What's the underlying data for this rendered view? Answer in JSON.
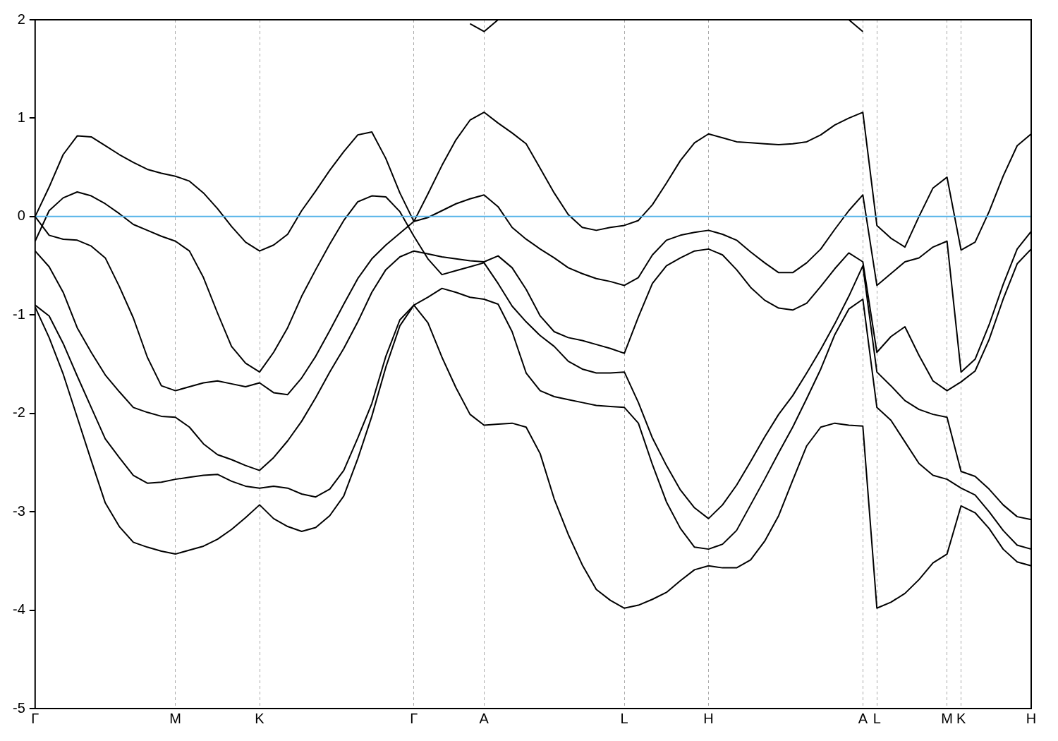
{
  "chart_data": {
    "type": "line",
    "ylim": [
      -5,
      2
    ],
    "categories": [
      "Γ",
      null,
      null,
      null,
      null,
      null,
      null,
      null,
      null,
      null,
      "M",
      null,
      null,
      null,
      null,
      null,
      "K",
      null,
      null,
      null,
      null,
      null,
      null,
      null,
      null,
      null,
      null,
      "Γ",
      null,
      null,
      null,
      null,
      "A",
      null,
      null,
      null,
      null,
      null,
      null,
      null,
      null,
      null,
      "L",
      null,
      null,
      null,
      null,
      null,
      "H",
      null,
      null,
      null,
      null,
      null,
      null,
      null,
      null,
      null,
      null,
      "A",
      "L",
      null,
      null,
      null,
      null,
      "M",
      "K",
      null,
      null,
      null,
      null,
      "H"
    ],
    "yticks": [
      -5,
      -4,
      -3,
      -2,
      -1,
      0,
      1,
      2
    ],
    "grid": "x",
    "marker": "none",
    "ref_lines": [
      {
        "axis": "y",
        "value": 0,
        "color": "#56b4e9"
      }
    ],
    "series": [
      {
        "color": "#000000",
        "values": [
          0,
          0.3,
          0.63,
          0.82,
          0.81,
          0.72,
          0.63,
          0.55,
          0.48,
          0.44,
          0.41,
          0.36,
          0.24,
          0.08,
          -0.1,
          -0.26,
          -0.35,
          -0.29,
          -0.18,
          0.06,
          0.26,
          0.47,
          0.66,
          0.83,
          0.86,
          0.59,
          0.24,
          -0.05,
          0.23,
          0.52,
          0.78,
          0.98,
          1.06,
          0.95,
          0.85,
          0.74,
          0.49,
          0.24,
          0.02,
          -0.11,
          -0.14,
          -0.11,
          -0.09,
          -0.04,
          0.12,
          0.34,
          0.57,
          0.75,
          0.84,
          0.8,
          0.76,
          0.75,
          0.74,
          0.73,
          0.74,
          0.76,
          0.83,
          0.93,
          1.0,
          1.06,
          -0.09,
          -0.22,
          -0.31,
          0.0,
          0.29,
          0.4,
          -0.34,
          -0.26,
          0.05,
          0.41,
          0.72,
          0.84
        ]
      },
      {
        "color": "#000000",
        "values": [
          0,
          -0.19,
          -0.23,
          -0.24,
          -0.3,
          -0.42,
          -0.71,
          -1.03,
          -1.43,
          -1.72,
          -1.77,
          -1.73,
          -1.69,
          -1.67,
          -1.7,
          -1.73,
          -1.69,
          -1.79,
          -1.81,
          -1.64,
          -1.42,
          -1.16,
          -0.89,
          -0.63,
          -0.43,
          -0.29,
          -0.17,
          -0.05,
          -0.01,
          0.06,
          0.13,
          0.18,
          0.22,
          0.1,
          -0.11,
          -0.23,
          -0.33,
          -0.42,
          -0.52,
          -0.58,
          -0.63,
          -0.66,
          -0.7,
          -0.62,
          -0.39,
          -0.24,
          -0.19,
          -0.16,
          -0.14,
          -0.18,
          -0.24,
          -0.36,
          -0.47,
          -0.57,
          -0.57,
          -0.47,
          -0.33,
          -0.13,
          0.06,
          0.22,
          -0.7,
          -0.58,
          -0.46,
          -0.42,
          -0.31,
          -0.25,
          -1.58,
          -1.45,
          -1.1,
          -0.69,
          -0.33,
          -0.15
        ]
      },
      {
        "color": "#000000",
        "values": [
          -0.35,
          -0.51,
          -0.77,
          -1.13,
          -1.38,
          -1.61,
          -1.78,
          -1.94,
          -1.99,
          -2.03,
          -2.04,
          -2.14,
          -2.31,
          -2.42,
          -2.47,
          -2.53,
          -2.58,
          -2.45,
          -2.28,
          -2.08,
          -1.84,
          -1.58,
          -1.34,
          -1.07,
          -0.77,
          -0.54,
          -0.41,
          -0.35,
          -0.38,
          -0.41,
          -0.43,
          -0.45,
          -0.46,
          -0.4,
          -0.52,
          -0.74,
          -1.01,
          -1.17,
          -1.23,
          -1.26,
          -1.3,
          -1.34,
          -1.39,
          -1.02,
          -0.68,
          -0.5,
          -0.42,
          -0.35,
          -0.33,
          -0.39,
          -0.54,
          -0.72,
          -0.85,
          -0.93,
          -0.95,
          -0.88,
          -0.71,
          -0.53,
          -0.37,
          -0.46,
          -1.38,
          -1.22,
          -1.12,
          -1.41,
          -1.67,
          -1.77,
          -1.68,
          -1.57,
          -1.25,
          -0.84,
          -0.48,
          -0.33
        ]
      },
      {
        "color": "#000000",
        "values": [
          -0.25,
          0.06,
          0.19,
          0.25,
          0.21,
          0.13,
          0.03,
          -0.08,
          -0.14,
          -0.2,
          -0.25,
          -0.35,
          -0.62,
          -0.98,
          -1.32,
          -1.49,
          -1.58,
          -1.38,
          -1.13,
          -0.81,
          -0.54,
          -0.28,
          -0.04,
          0.15,
          0.21,
          0.2,
          0.05,
          -0.2,
          -0.43,
          -0.59,
          -0.55,
          -0.51,
          -0.47,
          -0.68,
          -0.91,
          -1.07,
          -1.21,
          -1.32,
          -1.47,
          -1.55,
          -1.59,
          -1.59,
          -1.58,
          -1.89,
          -2.25,
          -2.53,
          -2.78,
          -2.96,
          -3.07,
          -2.93,
          -2.73,
          -2.49,
          -2.24,
          -2.01,
          -1.82,
          -1.59,
          -1.35,
          -1.09,
          -0.81,
          -0.5,
          -1.58,
          -1.72,
          -1.87,
          -1.96,
          -2.01,
          -2.04,
          -2.59,
          -2.64,
          -2.77,
          -2.93,
          -3.05,
          -3.08
        ]
      },
      {
        "color": "#000000",
        "values": [
          -0.92,
          -1.23,
          -1.6,
          -2.04,
          -2.48,
          -2.91,
          -3.15,
          -3.31,
          -3.36,
          -3.4,
          -3.43,
          -3.39,
          -3.35,
          -3.28,
          -3.18,
          -3.06,
          -2.93,
          -3.07,
          -3.15,
          -3.2,
          -3.16,
          -3.04,
          -2.84,
          -2.46,
          -2.03,
          -1.53,
          -1.11,
          -0.9,
          -0.82,
          -0.73,
          -0.77,
          -0.82,
          -0.84,
          -0.89,
          -1.17,
          -1.59,
          -1.77,
          -1.83,
          -1.86,
          -1.89,
          -1.92,
          -1.93,
          -1.94,
          -2.1,
          -2.52,
          -2.9,
          -3.17,
          -3.36,
          -3.38,
          -3.33,
          -3.19,
          -2.93,
          -2.67,
          -2.4,
          -2.14,
          -1.85,
          -1.55,
          -1.2,
          -0.94,
          -0.84,
          -1.94,
          -2.07,
          -2.29,
          -2.51,
          -2.63,
          -2.67,
          -2.76,
          -2.83,
          -3.0,
          -3.19,
          -3.34,
          -3.38
        ]
      },
      {
        "color": "#000000",
        "values": [
          -0.9,
          -1.01,
          -1.29,
          -1.62,
          -1.94,
          -2.26,
          -2.45,
          -2.63,
          -2.71,
          -2.7,
          -2.67,
          -2.65,
          -2.63,
          -2.62,
          -2.69,
          -2.74,
          -2.76,
          -2.74,
          -2.76,
          -2.82,
          -2.85,
          -2.77,
          -2.58,
          -2.25,
          -1.9,
          -1.42,
          -1.05,
          -0.9,
          -1.08,
          -1.43,
          -1.74,
          -2.01,
          -2.12,
          -2.11,
          -2.1,
          -2.14,
          -2.41,
          -2.87,
          -3.23,
          -3.54,
          -3.79,
          -3.9,
          -3.98,
          -3.95,
          -3.89,
          -3.82,
          -3.7,
          -3.59,
          -3.55,
          -3.57,
          -3.57,
          -3.49,
          -3.3,
          -3.04,
          -2.68,
          -2.33,
          -2.14,
          -2.1,
          -2.12,
          -2.13,
          -3.98,
          -3.92,
          -3.83,
          -3.69,
          -3.52,
          -3.43,
          -2.94,
          -3.01,
          -3.17,
          -3.38,
          -3.51,
          -3.55
        ]
      },
      {
        "color": "#000000",
        "values": [
          null,
          null,
          null,
          null,
          null,
          null,
          null,
          null,
          null,
          null,
          null,
          null,
          null,
          null,
          null,
          null,
          null,
          null,
          null,
          null,
          null,
          null,
          null,
          null,
          null,
          null,
          null,
          null,
          null,
          null,
          null,
          1.96,
          1.88,
          2.0,
          null,
          null,
          null,
          null,
          null,
          null,
          null,
          null,
          null,
          null,
          null,
          null,
          null,
          null,
          null,
          null,
          null,
          null,
          null,
          null,
          null,
          null,
          null,
          null,
          2.0,
          1.88,
          null,
          null,
          null,
          null,
          null,
          null,
          null,
          null,
          null,
          null,
          null,
          null
        ]
      }
    ]
  }
}
